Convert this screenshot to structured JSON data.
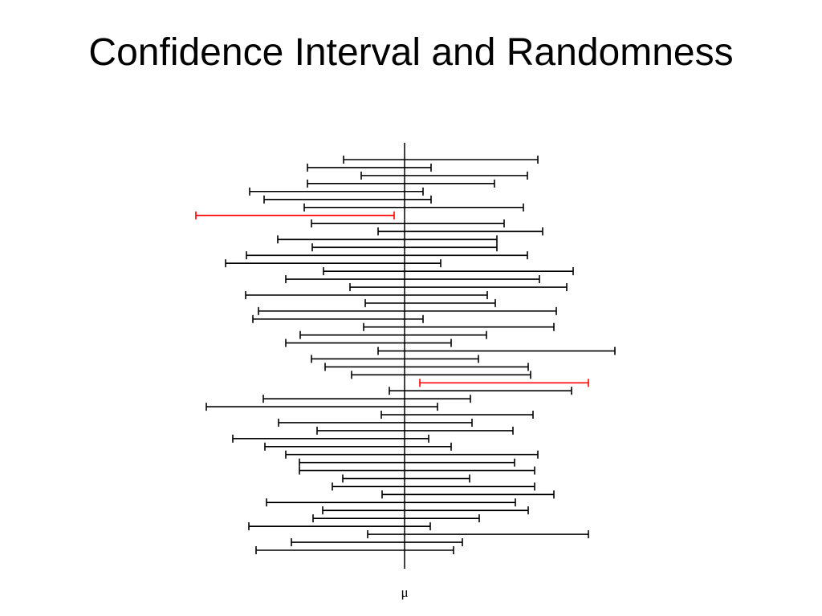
{
  "slide": {
    "title": "Confidence Interval and Randomness"
  },
  "chart_data": {
    "type": "interval",
    "reference_label": "μ",
    "reference_value": 0,
    "xlim": [
      -248,
      262
    ],
    "colors": {
      "covers_mu": "#000000",
      "misses_mu": "#ff0000"
    },
    "intervals": [
      {
        "lo": -76,
        "hi": 166,
        "covers_mu": true
      },
      {
        "lo": -121,
        "hi": 33,
        "covers_mu": true
      },
      {
        "lo": -54,
        "hi": 153,
        "covers_mu": true
      },
      {
        "lo": -121,
        "hi": 112,
        "covers_mu": true
      },
      {
        "lo": -193,
        "hi": 23,
        "covers_mu": true
      },
      {
        "lo": -175,
        "hi": 33,
        "covers_mu": true
      },
      {
        "lo": -125,
        "hi": 148,
        "covers_mu": true
      },
      {
        "lo": -260,
        "hi": -13,
        "covers_mu": false
      },
      {
        "lo": -116,
        "hi": 124,
        "covers_mu": true
      },
      {
        "lo": -33,
        "hi": 172,
        "covers_mu": true
      },
      {
        "lo": -158,
        "hi": 115,
        "covers_mu": true
      },
      {
        "lo": -115,
        "hi": 115,
        "covers_mu": true
      },
      {
        "lo": -197,
        "hi": 153,
        "covers_mu": true
      },
      {
        "lo": -223,
        "hi": 45,
        "covers_mu": true
      },
      {
        "lo": -101,
        "hi": 210,
        "covers_mu": true
      },
      {
        "lo": -148,
        "hi": 168,
        "covers_mu": true
      },
      {
        "lo": -68,
        "hi": 202,
        "covers_mu": true
      },
      {
        "lo": -198,
        "hi": 103,
        "covers_mu": true
      },
      {
        "lo": -49,
        "hi": 113,
        "covers_mu": true
      },
      {
        "lo": -182,
        "hi": 189,
        "covers_mu": true
      },
      {
        "lo": -189,
        "hi": 23,
        "covers_mu": true
      },
      {
        "lo": -51,
        "hi": 186,
        "covers_mu": true
      },
      {
        "lo": -130,
        "hi": 102,
        "covers_mu": true
      },
      {
        "lo": -148,
        "hi": 58,
        "covers_mu": true
      },
      {
        "lo": -33,
        "hi": 262,
        "covers_mu": true
      },
      {
        "lo": -116,
        "hi": 92,
        "covers_mu": true
      },
      {
        "lo": -99,
        "hi": 154,
        "covers_mu": true
      },
      {
        "lo": -66,
        "hi": 157,
        "covers_mu": true
      },
      {
        "lo": 19,
        "hi": 229,
        "covers_mu": false
      },
      {
        "lo": -19,
        "hi": 208,
        "covers_mu": true
      },
      {
        "lo": -176,
        "hi": 82,
        "covers_mu": true
      },
      {
        "lo": -247,
        "hi": 41,
        "covers_mu": true
      },
      {
        "lo": -29,
        "hi": 160,
        "covers_mu": true
      },
      {
        "lo": -157,
        "hi": 84,
        "covers_mu": true
      },
      {
        "lo": -109,
        "hi": 135,
        "covers_mu": true
      },
      {
        "lo": -214,
        "hi": 30,
        "covers_mu": true
      },
      {
        "lo": -174,
        "hi": 58,
        "covers_mu": true
      },
      {
        "lo": -148,
        "hi": 166,
        "covers_mu": true
      },
      {
        "lo": -131,
        "hi": 137,
        "covers_mu": true
      },
      {
        "lo": -131,
        "hi": 162,
        "covers_mu": true
      },
      {
        "lo": -77,
        "hi": 81,
        "covers_mu": true
      },
      {
        "lo": -90,
        "hi": 162,
        "covers_mu": true
      },
      {
        "lo": -28,
        "hi": 186,
        "covers_mu": true
      },
      {
        "lo": -172,
        "hi": 138,
        "covers_mu": true
      },
      {
        "lo": -102,
        "hi": 154,
        "covers_mu": true
      },
      {
        "lo": -114,
        "hi": 93,
        "covers_mu": true
      },
      {
        "lo": -194,
        "hi": 32,
        "covers_mu": true
      },
      {
        "lo": -46,
        "hi": 229,
        "covers_mu": true
      },
      {
        "lo": -141,
        "hi": 72,
        "covers_mu": true
      },
      {
        "lo": -185,
        "hi": 61,
        "covers_mu": true
      }
    ]
  }
}
